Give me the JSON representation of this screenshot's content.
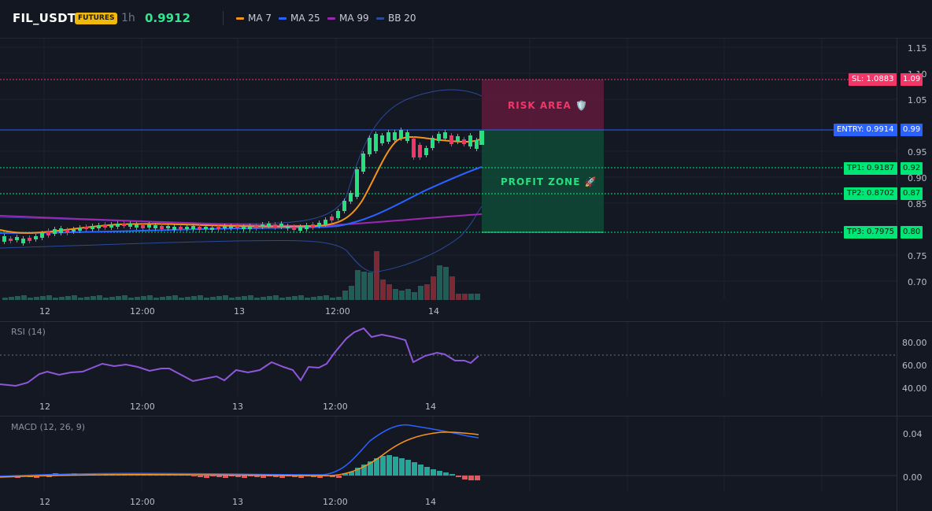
{
  "header": {
    "symbol": "FIL_USDT",
    "badge": "FUTURES",
    "timeframe": "1h",
    "price": "0.9912",
    "legend": [
      {
        "label": "MA 7",
        "color": "#f7931a"
      },
      {
        "label": "MA 25",
        "color": "#2962ff"
      },
      {
        "label": "MA 99",
        "color": "#9c27b0"
      },
      {
        "label": "BB 20",
        "color": "#2a4a9a"
      }
    ]
  },
  "price_axis": [
    "1.15",
    "1.10",
    "1.05",
    "0.95",
    "0.90",
    "0.85",
    "0.75",
    "0.70"
  ],
  "time_axis": [
    "12",
    "12:00",
    "13",
    "12:00",
    "14"
  ],
  "levels": {
    "sl": {
      "label": "SL: 1.0883",
      "price": "1.09",
      "color": "#f23645"
    },
    "entry": {
      "label": "ENTRY: 0.9914",
      "price": "0.99",
      "color": "#2962ff"
    },
    "tp1": {
      "label": "TP1: 0.9187",
      "price": "0.92",
      "color": "#00e676"
    },
    "tp2": {
      "label": "TP2: 0.8702",
      "price": "0.87",
      "color": "#00e676"
    },
    "tp3": {
      "label": "TP3: 0.7975",
      "price": "0.80",
      "color": "#00e676"
    }
  },
  "zones": {
    "risk": "RISK AREA 🛡️",
    "profit": "PROFIT ZONE 🚀"
  },
  "rsi": {
    "title": "RSI (14)",
    "axis": [
      "80.00",
      "60.00",
      "40.00"
    ]
  },
  "macd": {
    "title": "MACD (12, 26, 9)",
    "axis": [
      "0.04",
      "0.00"
    ]
  },
  "colors": {
    "up": "#26e07f",
    "down": "#f23668",
    "vol_up": "#1f5e56",
    "vol_down": "#7a2935",
    "rsi_line": "#8e57d9",
    "macd_line": "#2962ff",
    "signal_line": "#f7931a"
  }
}
